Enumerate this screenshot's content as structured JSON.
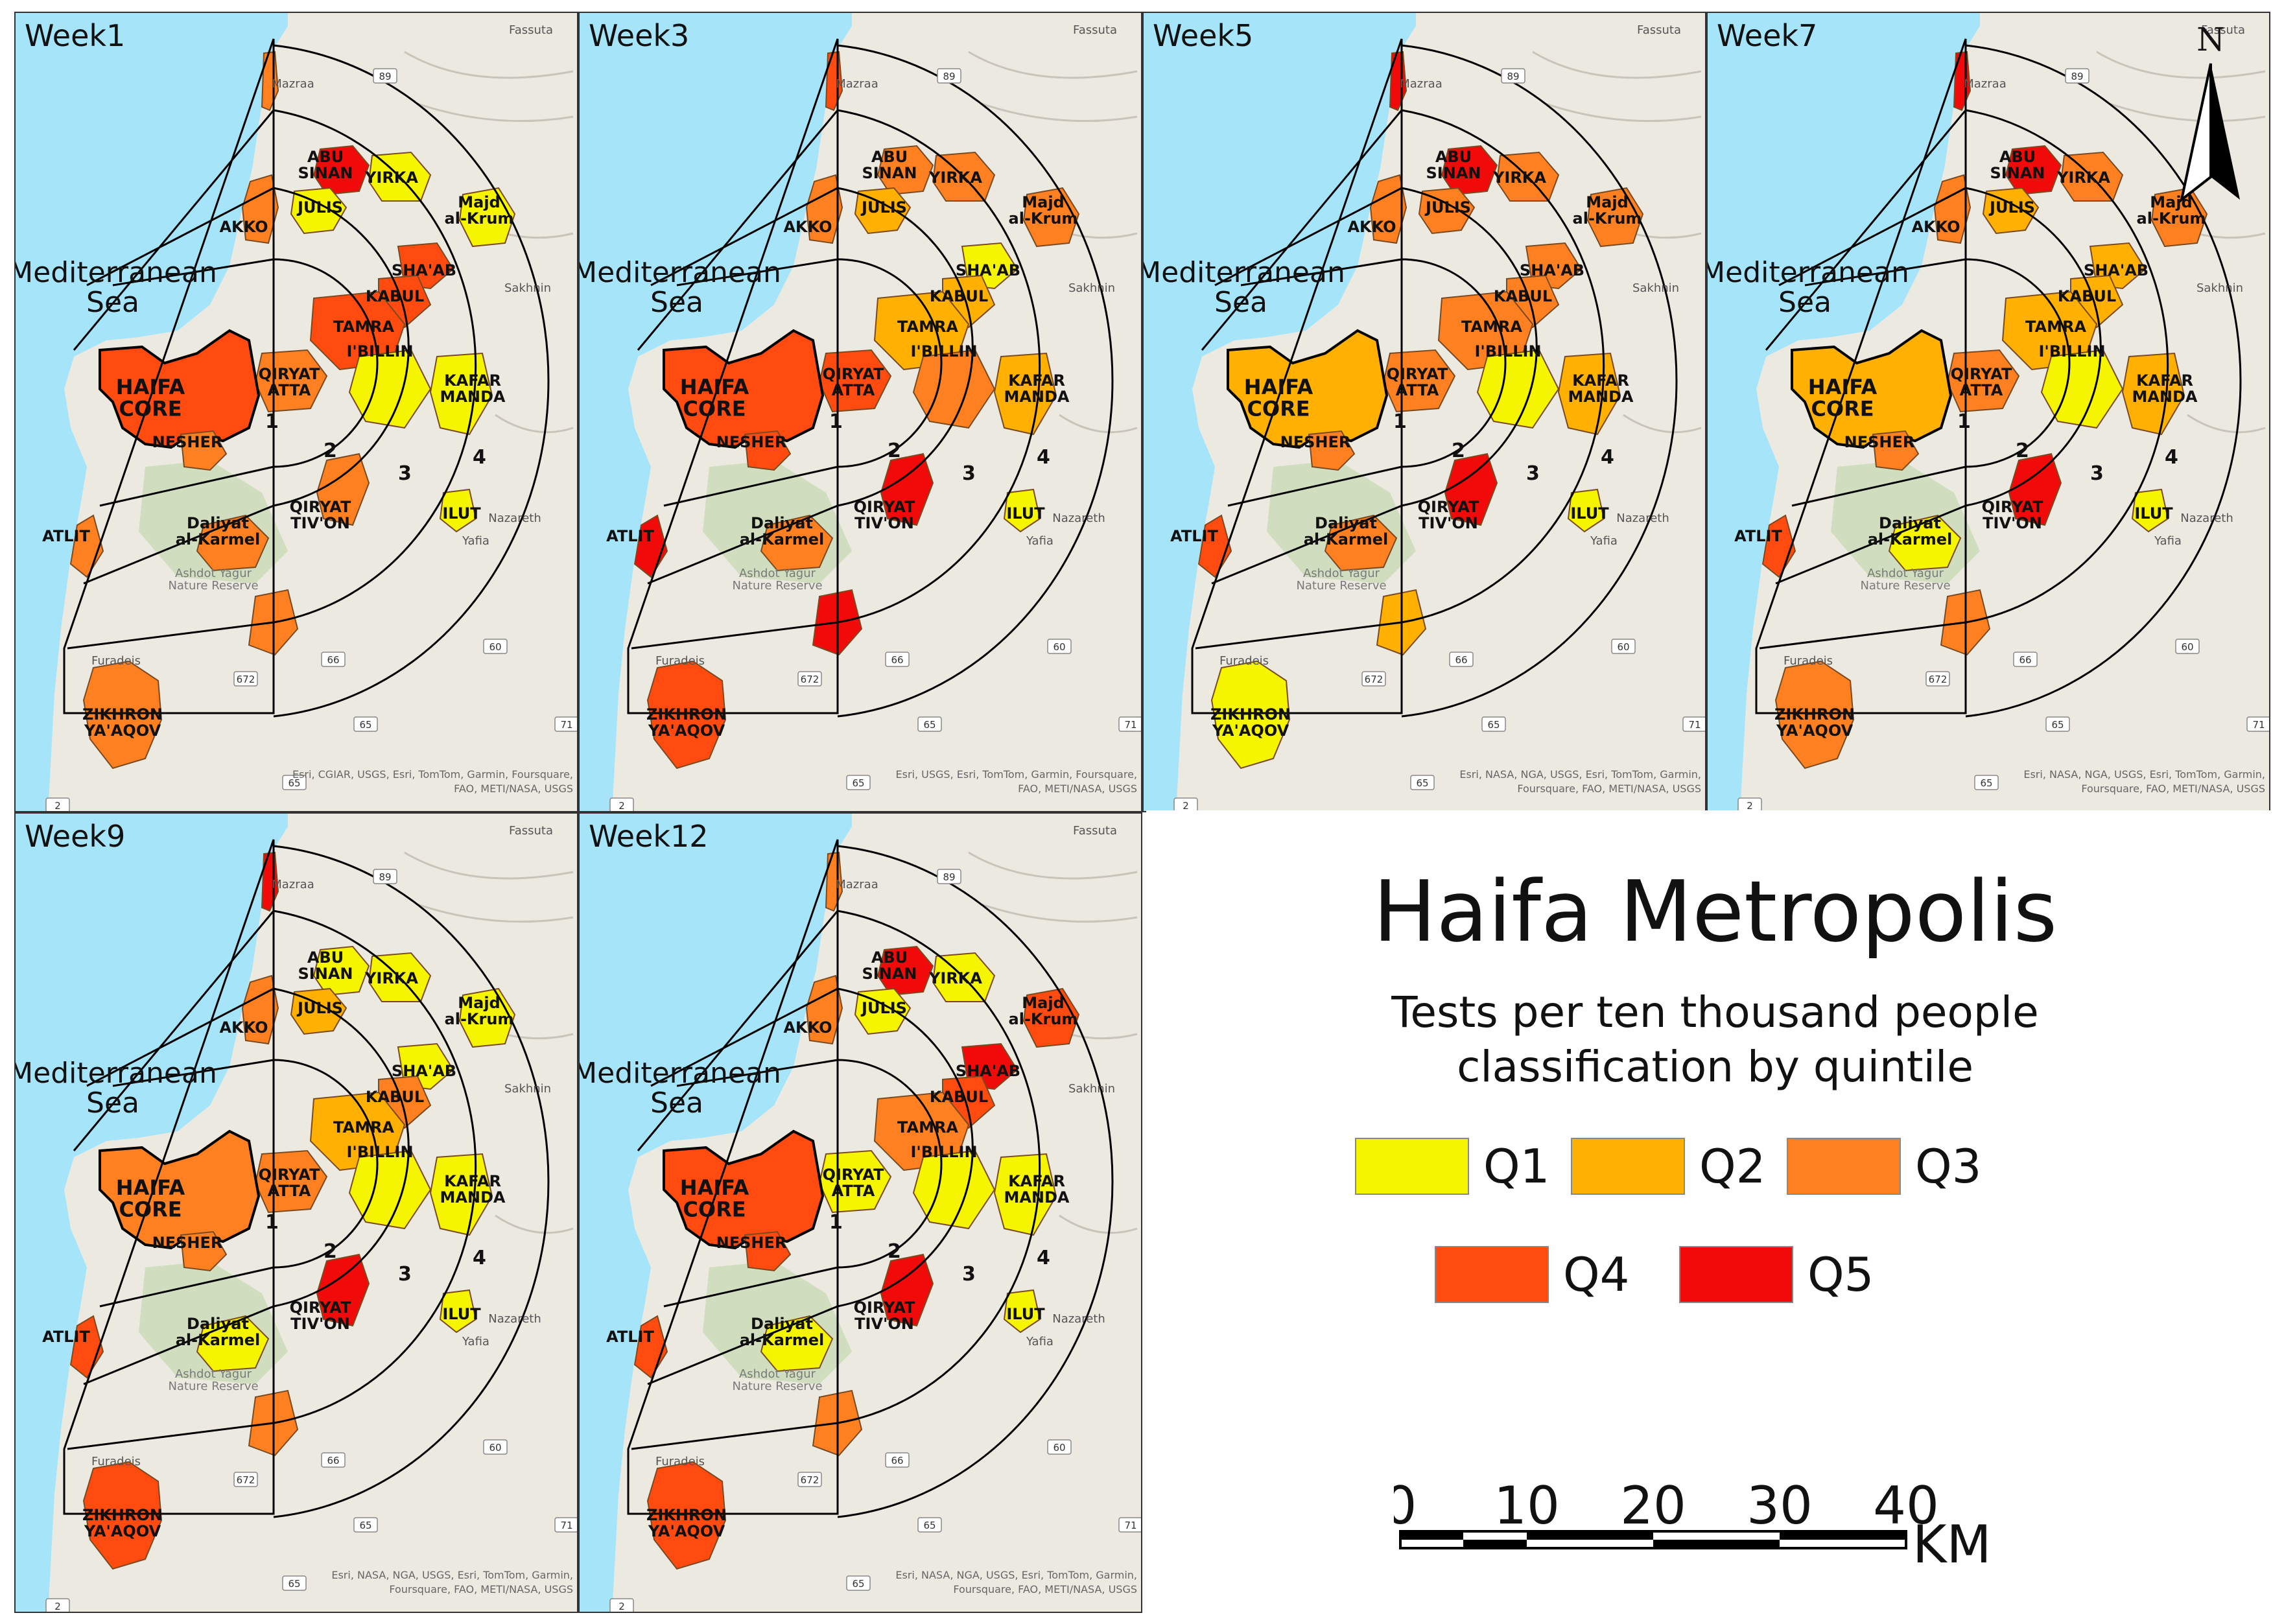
{
  "panels": [
    {
      "title": "Week1",
      "credit1": "Esri, CGIAR, USGS, Esri, TomTom, Garmin, Foursquare,",
      "credit2": "FAO, METI/NASA, USGS"
    },
    {
      "title": "Week3",
      "credit1": "Esri, USGS, Esri, TomTom, Garmin, Foursquare,",
      "credit2": "FAO, METI/NASA, USGS"
    },
    {
      "title": "Week5",
      "credit1": "Esri, NASA, NGA, USGS, Esri, TomTom, Garmin,",
      "credit2": "Foursquare, FAO, METI/NASA, USGS"
    },
    {
      "title": "Week7",
      "credit1": "Esri, NASA, NGA, USGS, Esri, TomTom, Garmin,",
      "credit2": "Foursquare, FAO, METI/NASA, USGS"
    },
    {
      "title": "Week9",
      "credit1": "Esri, NASA, NGA, USGS, Esri, TomTom, Garmin,",
      "credit2": "Foursquare, FAO, METI/NASA, USGS"
    },
    {
      "title": "Week12",
      "credit1": "Esri, NASA, NGA, USGS, Esri, TomTom, Garmin,",
      "credit2": "Foursquare, FAO, METI/NASA, USGS"
    }
  ],
  "map_labels": {
    "sea": [
      "Mediterranean",
      "Sea"
    ],
    "haifa_core": [
      "HAIFA",
      "CORE"
    ],
    "akko": "AKKO",
    "abu_sinan": [
      "ABU",
      "SINAN"
    ],
    "yirka": "YIRKA",
    "julis": "JULIS",
    "majd": [
      "Majd",
      "al-Krum"
    ],
    "shaab": "SHA'AB",
    "kabul": "KABUL",
    "tamra": "TAMRA",
    "ibillin": "I'BILLIN",
    "qiryat_atta": [
      "QIRYAT",
      "ATTA"
    ],
    "kafar_manda": [
      "KAFAR",
      "MANDA"
    ],
    "nesher": "NESHER",
    "qiryat_tivon": [
      "QIRYAT",
      "TIV'ON"
    ],
    "daliyat": [
      "Daliyat",
      "al-Karmel"
    ],
    "ilut": "ILUT",
    "atlit": "ATLIT",
    "zikhron": [
      "ZIKHRON",
      "YA'AQOV"
    ],
    "reserve": [
      "Ashdot Yagur",
      "Nature Reserve"
    ],
    "fassuta": "Fassuta",
    "sakhnin": "Sakhnin",
    "nazareth": "Nazareth",
    "yafia": "Yafia",
    "mazraa": "Mazraa",
    "furadeis": "Furadeis",
    "rings": [
      "1",
      "2",
      "3",
      "4"
    ],
    "roads": [
      "89",
      "672",
      "66",
      "65",
      "60",
      "71",
      "2",
      "65"
    ]
  },
  "panel_classes": [
    {
      "haifa": "Q4",
      "akko": "Q3",
      "abu": "Q5",
      "yirka": "Q1",
      "julis": "Q1",
      "majd": "Q1",
      "shaab": "Q4",
      "kabul": "Q4",
      "tamra": "Q4",
      "ibillin": "Q1",
      "qatta": "Q3",
      "kafar": "Q1",
      "nesher": "Q3",
      "tivon": "Q3",
      "daliyat": "Q3",
      "ilut": "Q1",
      "atlit": "Q3",
      "zikhron": "Q3",
      "north": "Q3",
      "south": "Q3"
    },
    {
      "haifa": "Q4",
      "akko": "Q3",
      "abu": "Q3",
      "yirka": "Q3",
      "julis": "Q2",
      "majd": "Q3",
      "shaab": "Q1",
      "kabul": "Q2",
      "tamra": "Q2",
      "ibillin": "Q3",
      "qatta": "Q4",
      "kafar": "Q2",
      "nesher": "Q4",
      "tivon": "Q5",
      "daliyat": "Q3",
      "ilut": "Q1",
      "atlit": "Q5",
      "zikhron": "Q4",
      "north": "Q4",
      "south": "Q5"
    },
    {
      "haifa": "Q2",
      "akko": "Q3",
      "abu": "Q5",
      "yirka": "Q3",
      "julis": "Q3",
      "majd": "Q3",
      "shaab": "Q3",
      "kabul": "Q3",
      "tamra": "Q3",
      "ibillin": "Q1",
      "qatta": "Q3",
      "kafar": "Q2",
      "nesher": "Q3",
      "tivon": "Q5",
      "daliyat": "Q3",
      "ilut": "Q1",
      "atlit": "Q4",
      "zikhron": "Q1",
      "north": "Q5",
      "south": "Q2"
    },
    {
      "haifa": "Q2",
      "akko": "Q3",
      "abu": "Q5",
      "yirka": "Q3",
      "julis": "Q2",
      "majd": "Q3",
      "shaab": "Q2",
      "kabul": "Q2",
      "tamra": "Q2",
      "ibillin": "Q1",
      "qatta": "Q3",
      "kafar": "Q2",
      "nesher": "Q3",
      "tivon": "Q5",
      "daliyat": "Q1",
      "ilut": "Q1",
      "atlit": "Q4",
      "zikhron": "Q3",
      "north": "Q5",
      "south": "Q3"
    },
    {
      "haifa": "Q3",
      "akko": "Q3",
      "abu": "Q1",
      "yirka": "Q1",
      "julis": "Q2",
      "majd": "Q1",
      "shaab": "Q1",
      "kabul": "Q3",
      "tamra": "Q2",
      "ibillin": "Q1",
      "qatta": "Q3",
      "kafar": "Q1",
      "nesher": "Q3",
      "tivon": "Q5",
      "daliyat": "Q1",
      "ilut": "Q1",
      "atlit": "Q4",
      "zikhron": "Q4",
      "north": "Q5",
      "south": "Q3"
    },
    {
      "haifa": "Q4",
      "akko": "Q3",
      "abu": "Q5",
      "yirka": "Q1",
      "julis": "Q1",
      "majd": "Q4",
      "shaab": "Q5",
      "kabul": "Q4",
      "tamra": "Q3",
      "ibillin": "Q1",
      "qatta": "Q1",
      "kafar": "Q1",
      "nesher": "Q4",
      "tivon": "Q5",
      "daliyat": "Q1",
      "ilut": "Q1",
      "atlit": "Q4",
      "zikhron": "Q4",
      "north": "Q3",
      "south": "Q3"
    }
  ],
  "legend": {
    "title": "Haifa Metropolis",
    "subtitle_line1": "Tests per ten thousand people",
    "subtitle_line2": "classification by quintile",
    "items": [
      {
        "label": "Q1",
        "color": "#f5f500"
      },
      {
        "label": "Q2",
        "color": "#ffb000"
      },
      {
        "label": "Q3",
        "color": "#ff8020"
      },
      {
        "label": "Q4",
        "color": "#ff4a10"
      },
      {
        "label": "Q5",
        "color": "#f00a0a"
      }
    ]
  },
  "scale": {
    "ticks": [
      "0",
      "10",
      "20",
      "30",
      "40"
    ],
    "unit": "KM"
  },
  "north_arrow": {
    "label": "N"
  },
  "colors": {
    "sea": "#a6e4fa",
    "land": "#ece9e1",
    "green": "#c9dbb6",
    "ring": "#000000"
  }
}
